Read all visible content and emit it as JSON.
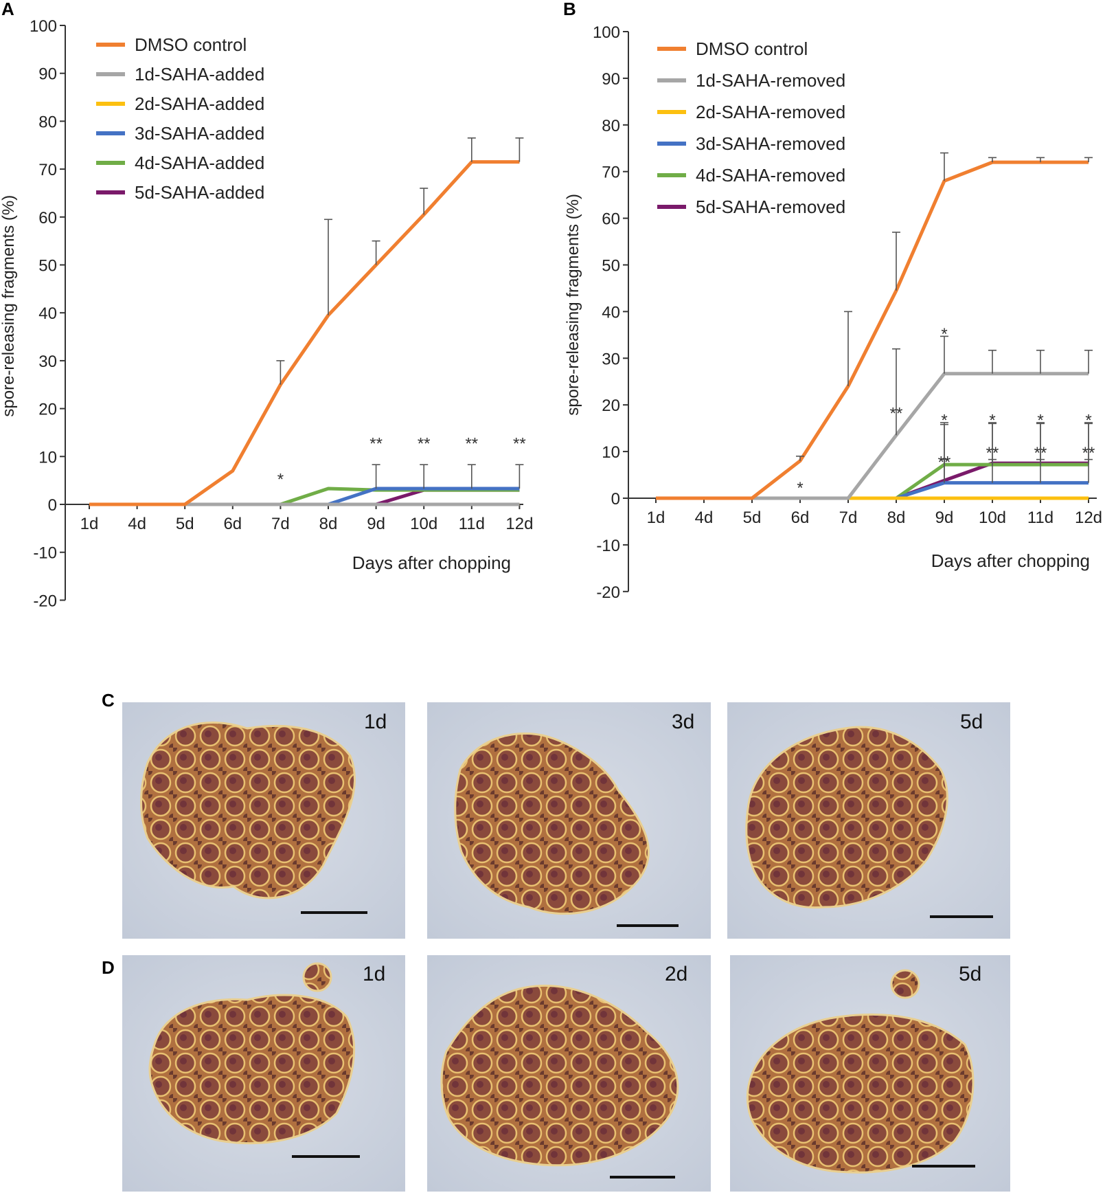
{
  "panels": {
    "A": "A",
    "B": "B",
    "C": "C",
    "D": "D"
  },
  "chart_data": [
    {
      "panel": "A",
      "type": "line",
      "categories": [
        "1d",
        "4d",
        "5d",
        "6d",
        "7d",
        "8d",
        "9d",
        "10d",
        "11d",
        "12d"
      ],
      "ylim": [
        -20,
        100
      ],
      "yticks": [
        -20,
        -10,
        0,
        10,
        20,
        30,
        40,
        50,
        60,
        70,
        80,
        90,
        100
      ],
      "xlabel": "Days after chopping",
      "ylabel": "spore-releasing fragments (%)",
      "legend_position": "top-left",
      "series": [
        {
          "name": "DMSO control",
          "color": "#f07f30",
          "values": [
            0,
            0,
            0,
            7,
            25,
            39.5,
            50,
            60.5,
            71.5,
            71.5
          ],
          "err": [
            0,
            0,
            0,
            0,
            5,
            20,
            5,
            5.5,
            5,
            5
          ]
        },
        {
          "name": "1d-SAHA-added",
          "color": "#a6a6a6",
          "values": [
            0,
            0,
            0,
            0,
            0,
            0,
            0,
            0,
            0,
            0
          ],
          "err": []
        },
        {
          "name": "2d-SAHA-added",
          "color": "#fcc010",
          "values": [
            0,
            0,
            0,
            0,
            0,
            0,
            0,
            0,
            0,
            0
          ],
          "err": []
        },
        {
          "name": "3d-SAHA-added",
          "color": "#4472c4",
          "values": [
            0,
            0,
            0,
            0,
            0,
            0,
            3.3,
            3.3,
            3.3,
            3.3
          ],
          "err": [
            0,
            0,
            0,
            0,
            0,
            0,
            5,
            5,
            5,
            5
          ]
        },
        {
          "name": "4d-SAHA-added",
          "color": "#70ad47",
          "values": [
            0,
            0,
            0,
            0,
            0,
            3.3,
            3,
            3,
            3,
            3
          ],
          "err": []
        },
        {
          "name": "5d-SAHA-added",
          "color": "#7a1a6a",
          "values": [
            0,
            0,
            0,
            0,
            0,
            0,
            0,
            3,
            3,
            3
          ],
          "err": []
        }
      ],
      "annotations": [
        {
          "text": "*",
          "x": "7d",
          "y": 5.5
        },
        {
          "text": "**",
          "x": "9d",
          "y": 13
        },
        {
          "text": "**",
          "x": "10d",
          "y": 13
        },
        {
          "text": "**",
          "x": "11d",
          "y": 13
        },
        {
          "text": "**",
          "x": "12d",
          "y": 13
        }
      ]
    },
    {
      "panel": "B",
      "type": "line",
      "categories": [
        "1d",
        "4d",
        "5d",
        "6d",
        "7d",
        "8d",
        "9d",
        "10d",
        "11d",
        "12d"
      ],
      "ylim": [
        -20,
        100
      ],
      "yticks": [
        -20,
        -10,
        0,
        10,
        20,
        30,
        40,
        50,
        60,
        70,
        80,
        90,
        100
      ],
      "xlabel": "Days after chopping",
      "ylabel": "spore-releasing fragments (%)",
      "legend_position": "top-left",
      "series": [
        {
          "name": "DMSO control",
          "color": "#f07f30",
          "values": [
            0,
            0,
            0,
            8,
            24,
            44.5,
            68,
            72,
            72,
            72
          ],
          "err": [
            0,
            0,
            0,
            1,
            16,
            12.5,
            6,
            1,
            1,
            1
          ]
        },
        {
          "name": "1d-SAHA-removed",
          "color": "#a6a6a6",
          "values": [
            0,
            0,
            0,
            0,
            0,
            13.5,
            26.7,
            26.7,
            26.7,
            26.7
          ],
          "err": [
            0,
            0,
            0,
            0,
            0,
            18.5,
            8,
            5,
            5,
            5
          ]
        },
        {
          "name": "2d-SAHA-removed",
          "color": "#fcc010",
          "values": [
            0,
            0,
            0,
            0,
            0,
            0,
            0,
            0,
            0,
            0
          ],
          "err": []
        },
        {
          "name": "3d-SAHA-removed",
          "color": "#4472c4",
          "values": [
            0,
            0,
            0,
            0,
            0,
            0,
            3.3,
            3.3,
            3.3,
            3.3
          ],
          "err": [
            0,
            0,
            0,
            0,
            0,
            0,
            5,
            5,
            5,
            5
          ]
        },
        {
          "name": "4d-SAHA-removed",
          "color": "#70ad47",
          "values": [
            0,
            0,
            0,
            0,
            0,
            0,
            7.2,
            7.2,
            7.2,
            7.2
          ],
          "err": [
            0,
            0,
            0,
            0,
            0,
            0,
            9,
            9,
            9,
            9
          ]
        },
        {
          "name": "5d-SAHA-removed",
          "color": "#7a1a6a",
          "values": [
            0,
            0,
            0,
            0,
            0,
            0,
            3.8,
            7.5,
            7.5,
            7.5
          ],
          "err": [
            0,
            0,
            0,
            0,
            0,
            0,
            12,
            8.5,
            8.5,
            8.5
          ]
        }
      ],
      "annotations": [
        {
          "text": "*",
          "x": "6d",
          "y": 2.5
        },
        {
          "text": "**",
          "x": "8d",
          "y": 18.5
        },
        {
          "text": "*",
          "x": "9d",
          "y": 35.5
        },
        {
          "text": "*",
          "x": "9d",
          "y": 17
        },
        {
          "text": "**",
          "x": "9d",
          "y": 8
        },
        {
          "text": "*",
          "x": "10d",
          "y": 17
        },
        {
          "text": "**",
          "x": "10d",
          "y": 10
        },
        {
          "text": "*",
          "x": "11d",
          "y": 17
        },
        {
          "text": "**",
          "x": "11d",
          "y": 10
        },
        {
          "text": "*",
          "x": "12d",
          "y": 17
        },
        {
          "text": "**",
          "x": "12d",
          "y": 10
        }
      ]
    }
  ],
  "micrographs": {
    "row_C": [
      {
        "label": "1d"
      },
      {
        "label": "3d"
      },
      {
        "label": "5d"
      }
    ],
    "row_D": [
      {
        "label": "1d"
      },
      {
        "label": "2d"
      },
      {
        "label": "5d"
      }
    ]
  }
}
